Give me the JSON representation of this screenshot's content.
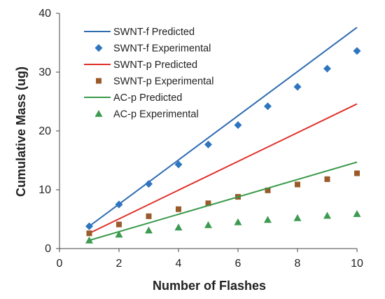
{
  "chart_data": {
    "type": "scatter",
    "title": "",
    "xlabel": "Number of Flashes",
    "ylabel": "Cumulative Mass (ug)",
    "xlim": [
      0,
      10
    ],
    "ylim": [
      0,
      40
    ],
    "x_ticks": [
      "0",
      "2",
      "4",
      "6",
      "8",
      "10"
    ],
    "y_ticks": [
      "0",
      "10",
      "20",
      "30",
      "40"
    ],
    "grid": false,
    "legend_position": "top-left",
    "series": [
      {
        "name": "SWNT-f  Predicted",
        "kind": "line",
        "color": "#2e6bb0",
        "x": [
          1,
          10
        ],
        "y": [
          3.8,
          37.6
        ]
      },
      {
        "name": "SWNT-f  Experimental",
        "kind": "marker",
        "marker": "diamond",
        "color": "#2e75c0",
        "x": [
          1,
          2,
          3,
          4,
          5,
          6,
          7,
          8,
          9,
          10
        ],
        "y": [
          3.8,
          7.5,
          11.0,
          14.3,
          17.7,
          21.0,
          24.2,
          27.5,
          30.6,
          33.6
        ]
      },
      {
        "name": "SWNT-p  Predicted",
        "kind": "line",
        "color": "#e0302a",
        "x": [
          1,
          10
        ],
        "y": [
          2.6,
          24.6
        ]
      },
      {
        "name": "SWNT-p  Experimental",
        "kind": "marker",
        "marker": "square",
        "color": "#9b5a2a",
        "x": [
          1,
          2,
          3,
          4,
          5,
          6,
          7,
          8,
          9,
          10
        ],
        "y": [
          2.6,
          4.1,
          5.5,
          6.7,
          7.7,
          8.8,
          9.9,
          10.9,
          11.8,
          12.8
        ]
      },
      {
        "name": "AC-p  Predicted",
        "kind": "line",
        "color": "#3a9a4a",
        "x": [
          1,
          10
        ],
        "y": [
          1.4,
          14.7
        ]
      },
      {
        "name": "AC-p  Experimental",
        "kind": "marker",
        "marker": "triangle",
        "color": "#3c9b50",
        "x": [
          1,
          2,
          3,
          4,
          5,
          6,
          7,
          8,
          9,
          10
        ],
        "y": [
          1.4,
          2.4,
          3.1,
          3.6,
          4.0,
          4.5,
          4.9,
          5.2,
          5.6,
          5.9
        ]
      }
    ]
  }
}
